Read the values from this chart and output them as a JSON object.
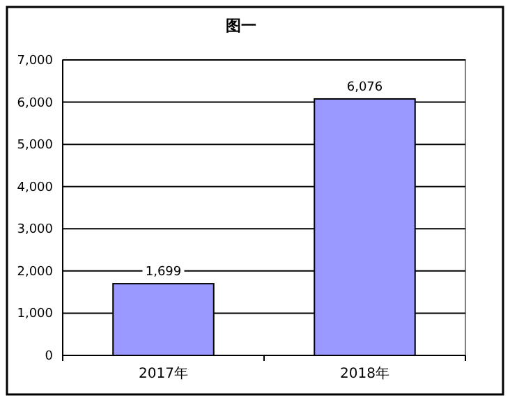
{
  "chart_data": {
    "type": "bar",
    "title": "图一",
    "categories": [
      "2017年",
      "2018年"
    ],
    "values": [
      1699,
      6076
    ],
    "color": "#9999ff",
    "value_labels": [
      "1,699",
      "6,076"
    ],
    "ylim": [
      0,
      7000
    ],
    "yticks": [
      0,
      {
        "value": 1000,
        "label": "1,000"
      },
      {
        "value": 2000,
        "label": "2,000"
      },
      {
        "value": 3000,
        "label": "3,000"
      },
      {
        "value": 4000,
        "label": "4,000"
      },
      {
        "value": 5000,
        "label": "5,000"
      },
      {
        "value": 6000,
        "label": "6,000"
      },
      {
        "value": 7000,
        "label": "7,000"
      }
    ],
    "grid": "y"
  }
}
